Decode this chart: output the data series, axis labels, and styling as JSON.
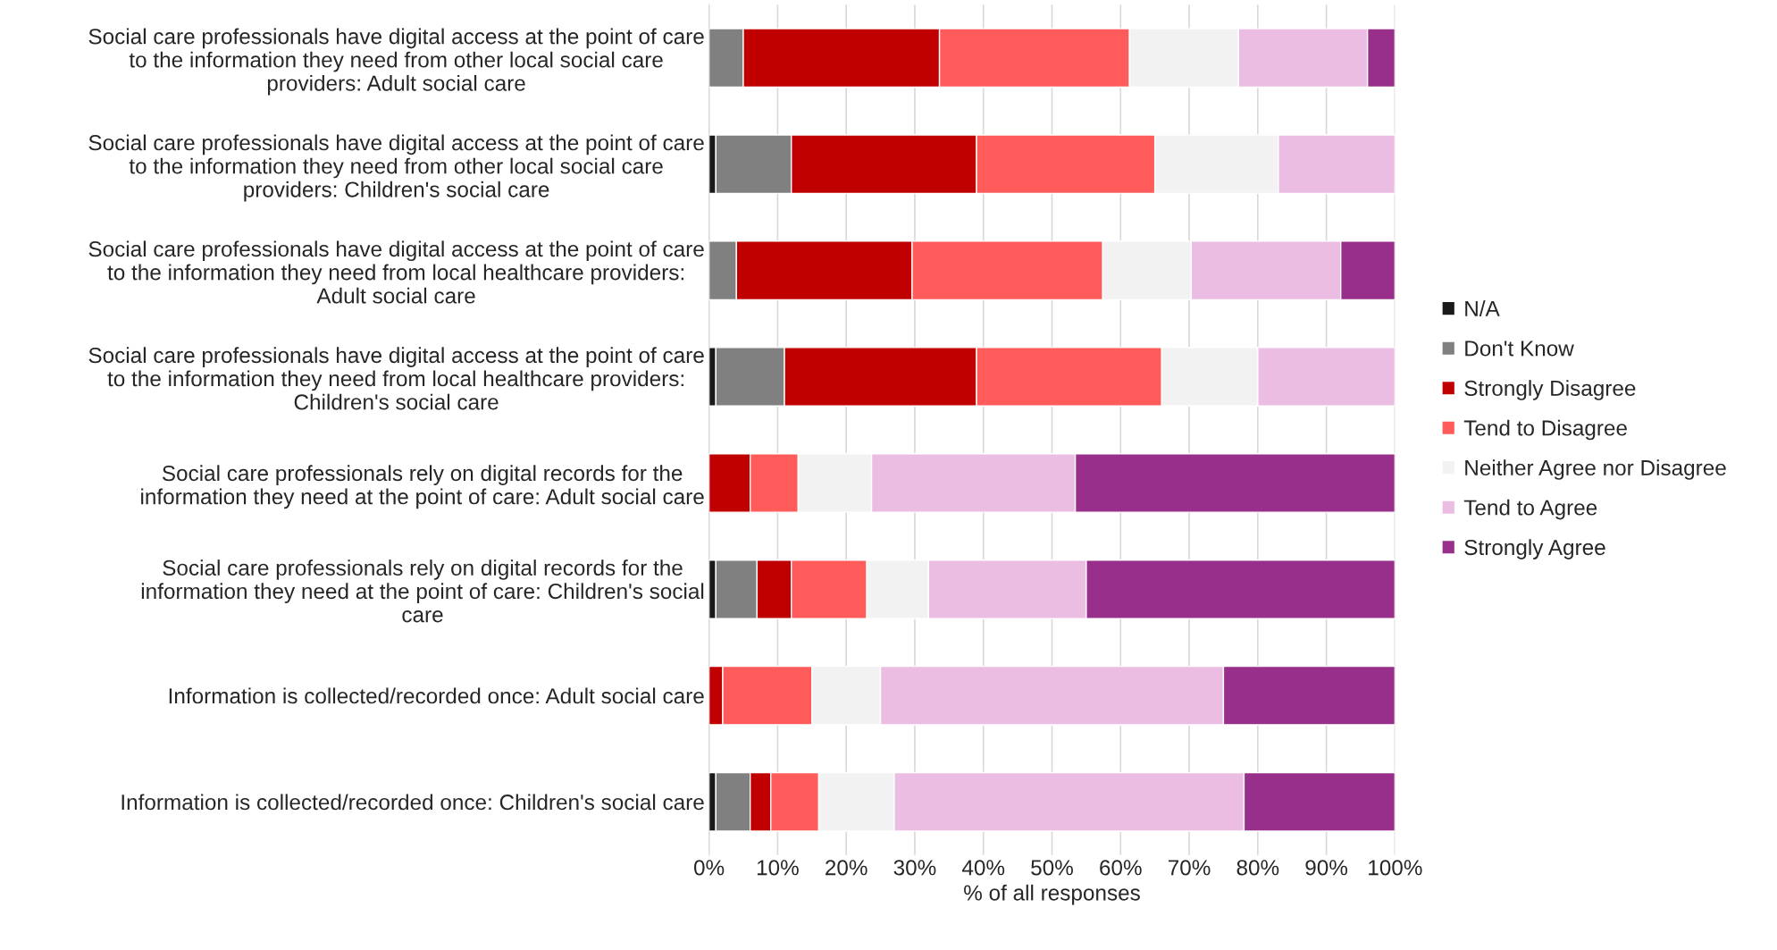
{
  "chart_data": {
    "type": "bar",
    "orientation": "horizontal",
    "stacked": true,
    "categories": [
      "Social care professionals have digital access at the point of care\nto the information they need from other local social care\nproviders: Adult social care",
      "Social care professionals have digital access at the point of care\nto the information they need from other local social care\nproviders: Children's social care",
      "Social care professionals have digital access at the point of care\nto the information they need from local healthcare providers:\nAdult social care",
      "Social care professionals have digital access at the point of care\nto the information they need from local healthcare providers:\nChildren's social care",
      "Social care professionals rely on digital records for the\ninformation they need at the point of care: Adult social care",
      "Social care professionals rely on digital records for the\ninformation they need at the point of care: Children's social\ncare",
      "Information is collected/recorded once: Adult social care",
      "Information is collected/recorded once: Children's social care"
    ],
    "series": [
      {
        "name": "N/A",
        "color": "#1a1a1a",
        "values": [
          null,
          1,
          null,
          1,
          null,
          1,
          null,
          1
        ]
      },
      {
        "name": "Don't Know",
        "color": "#808080",
        "values": [
          5,
          11,
          4,
          10,
          null,
          6,
          null,
          5
        ]
      },
      {
        "name": "Strongly Disagree",
        "color": "#c00000",
        "values": [
          28.6,
          27,
          25.6,
          28,
          6,
          5,
          2,
          3
        ]
      },
      {
        "name": "Tend to Disagree",
        "color": "#ff5b5b",
        "values": [
          27.7,
          26,
          27.8,
          27,
          7,
          11,
          13,
          7
        ]
      },
      {
        "name": "Neither Agree nor Disagree",
        "color": "#f2f2f2",
        "values": [
          15.9,
          18,
          12.9,
          14,
          10.7,
          9,
          10,
          11
        ]
      },
      {
        "name": "Tend to Agree",
        "color": "#ebbde3",
        "values": [
          18.8,
          17,
          21.8,
          20,
          29.7,
          23,
          50,
          51
        ]
      },
      {
        "name": "Strongly Agree",
        "color": "#982f8a",
        "values": [
          4,
          null,
          7.9,
          null,
          46.6,
          45,
          25,
          22
        ]
      }
    ],
    "xlim": [
      0,
      100
    ],
    "xticks": [
      {
        "value": 0,
        "label": "0%"
      },
      {
        "value": 10,
        "label": "10%"
      },
      {
        "value": 20,
        "label": "20%"
      },
      {
        "value": 30,
        "label": "30%"
      },
      {
        "value": 40,
        "label": "40%"
      },
      {
        "value": 50,
        "label": "50%"
      },
      {
        "value": 60,
        "label": "60%"
      },
      {
        "value": 70,
        "label": "70%"
      },
      {
        "value": 80,
        "label": "80%"
      },
      {
        "value": 90,
        "label": "90%"
      },
      {
        "value": 100,
        "label": "100%"
      }
    ],
    "xlabel": "% of all responses",
    "grid": "x",
    "legend": "right"
  }
}
